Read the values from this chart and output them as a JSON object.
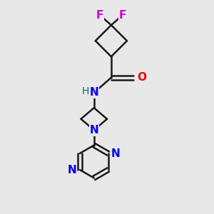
{
  "bg_color": "#e8e8e8",
  "bond_color": "#1a1a1a",
  "bond_width": 1.8,
  "F_color": "#cc00cc",
  "N_color": "#0000ee",
  "O_color": "#ee0000",
  "NH_color": "#007070",
  "figsize": [
    3.0,
    3.0
  ],
  "dpi": 100,
  "xlim": [
    0,
    10
  ],
  "ylim": [
    0,
    10
  ]
}
